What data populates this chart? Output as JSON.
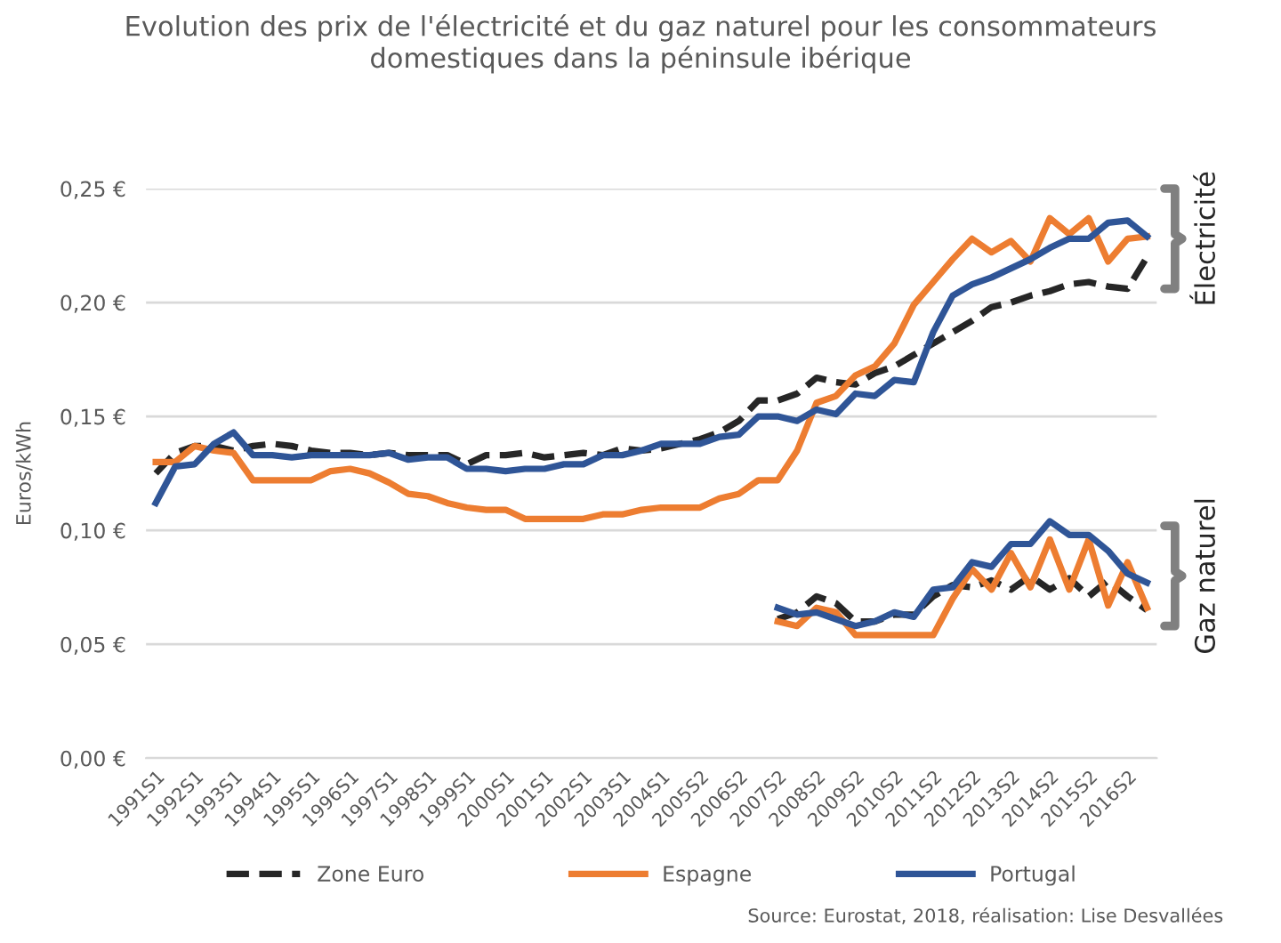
{
  "chart_data": {
    "type": "line",
    "title": "Evolution des prix de l'électricité et du gaz naturel pour les consommateurs\ndomestiques dans la péninsule ibérique",
    "ylabel": "Euros/kWh",
    "categories": [
      "1991S1",
      null,
      "1992S1",
      null,
      "1993S1",
      null,
      "1994S1",
      null,
      "1995S1",
      null,
      "1996S1",
      null,
      "1997S1",
      null,
      "1998S1",
      null,
      "1999S1",
      null,
      "2000S1",
      null,
      "2001S1",
      null,
      "2002S1",
      null,
      "2003S1",
      null,
      "2004S1",
      null,
      "2005S2",
      null,
      "2006S2",
      null,
      "2007S2",
      null,
      "2008S2",
      null,
      "2009S2",
      null,
      "2010S2",
      null,
      "2011S2",
      null,
      "2012S2",
      null,
      "2013S2",
      null,
      "2014S2",
      null,
      "2015S2",
      null,
      "2016S2",
      null
    ],
    "series": [
      {
        "name": "Zone Euro",
        "color": "#262626",
        "line_style": "dashed",
        "values": [
          0.125,
          0.134,
          0.137,
          0.137,
          0.135,
          0.137,
          0.138,
          0.137,
          0.135,
          0.134,
          0.134,
          0.133,
          0.134,
          0.133,
          0.133,
          0.133,
          0.129,
          0.133,
          0.133,
          0.134,
          0.132,
          0.133,
          0.134,
          0.133,
          0.136,
          0.135,
          0.136,
          0.138,
          0.14,
          0.143,
          0.148,
          0.157,
          0.157,
          0.16,
          0.167,
          0.165,
          0.164,
          0.169,
          0.172,
          0.177,
          0.182,
          0.187,
          0.192,
          0.198,
          0.2,
          0.203,
          0.205,
          0.208,
          0.209,
          0.207,
          0.206,
          0.22
        ]
      },
      {
        "name": "Espagne",
        "color": "#ed7d31",
        "line_style": "solid",
        "values": [
          0.13,
          0.13,
          0.137,
          0.135,
          0.134,
          0.122,
          0.122,
          0.122,
          0.122,
          0.126,
          0.127,
          0.125,
          0.121,
          0.116,
          0.115,
          0.112,
          0.11,
          0.109,
          0.109,
          0.105,
          0.105,
          0.105,
          0.105,
          0.107,
          0.107,
          0.109,
          0.11,
          0.11,
          0.11,
          0.114,
          0.116,
          0.122,
          0.122,
          0.135,
          0.156,
          0.159,
          0.168,
          0.172,
          0.182,
          0.199,
          0.209,
          0.219,
          0.228,
          0.222,
          0.227,
          0.218,
          0.237,
          0.23,
          0.237,
          0.218,
          0.228,
          0.229
        ]
      },
      {
        "name": "Portugal",
        "color": "#2f5597",
        "line_style": "solid",
        "values": [
          0.112,
          0.128,
          0.129,
          0.138,
          0.143,
          0.133,
          0.133,
          0.132,
          0.133,
          0.133,
          0.133,
          0.133,
          0.134,
          0.131,
          0.132,
          0.132,
          0.127,
          0.127,
          0.126,
          0.127,
          0.127,
          0.129,
          0.129,
          0.133,
          0.133,
          0.135,
          0.138,
          0.138,
          0.138,
          0.141,
          0.142,
          0.15,
          0.15,
          0.148,
          0.153,
          0.151,
          0.16,
          0.159,
          0.166,
          0.165,
          0.187,
          0.203,
          0.208,
          0.211,
          0.215,
          0.219,
          0.224,
          0.228,
          0.228,
          0.235,
          0.236,
          0.229
        ]
      },
      {
        "color": "#262626",
        "line_style": "dashed",
        "values": [
          null,
          null,
          null,
          null,
          null,
          null,
          null,
          null,
          null,
          null,
          null,
          null,
          null,
          null,
          null,
          null,
          null,
          null,
          null,
          null,
          null,
          null,
          null,
          null,
          null,
          null,
          null,
          null,
          null,
          null,
          null,
          null,
          0.061,
          0.064,
          0.071,
          0.068,
          0.06,
          0.06,
          0.063,
          0.063,
          0.071,
          0.076,
          0.075,
          0.078,
          0.074,
          0.08,
          0.074,
          0.079,
          0.071,
          0.078,
          0.071,
          0.065
        ]
      },
      {
        "color": "#ed7d31",
        "line_style": "solid",
        "values": [
          null,
          null,
          null,
          null,
          null,
          null,
          null,
          null,
          null,
          null,
          null,
          null,
          null,
          null,
          null,
          null,
          null,
          null,
          null,
          null,
          null,
          null,
          null,
          null,
          null,
          null,
          null,
          null,
          null,
          null,
          null,
          null,
          0.06,
          0.058,
          0.066,
          0.064,
          0.054,
          0.054,
          0.054,
          0.054,
          0.054,
          0.07,
          0.083,
          0.074,
          0.09,
          0.075,
          0.096,
          0.074,
          0.096,
          0.067,
          0.086,
          0.066
        ]
      },
      {
        "color": "#2f5597",
        "line_style": "solid",
        "values": [
          null,
          null,
          null,
          null,
          null,
          null,
          null,
          null,
          null,
          null,
          null,
          null,
          null,
          null,
          null,
          null,
          null,
          null,
          null,
          null,
          null,
          null,
          null,
          null,
          null,
          null,
          null,
          null,
          null,
          null,
          null,
          null,
          0.066,
          0.063,
          0.064,
          0.061,
          0.058,
          0.06,
          0.064,
          0.062,
          0.074,
          0.075,
          0.086,
          0.084,
          0.094,
          0.094,
          0.104,
          0.098,
          0.098,
          0.091,
          0.081,
          0.077
        ]
      }
    ],
    "ylim": [
      0,
      0.25
    ],
    "yticks": [
      {
        "value": 0,
        "label": "0,00 €"
      },
      {
        "value": 0.05,
        "label": "0,05 €"
      },
      {
        "value": 0.1,
        "label": "0,10 €"
      },
      {
        "value": 0.15,
        "label": "0,15 €"
      },
      {
        "value": 0.2,
        "label": "0,20 €"
      },
      {
        "value": 0.25,
        "label": "0,25 €"
      }
    ],
    "grid": "y",
    "legend": "bottom",
    "marker": "none",
    "annotations": [
      "Électricité",
      "Gaz naturel",
      "Source: Eurostat, 2018, réalisation: Lise Desvallées"
    ]
  }
}
